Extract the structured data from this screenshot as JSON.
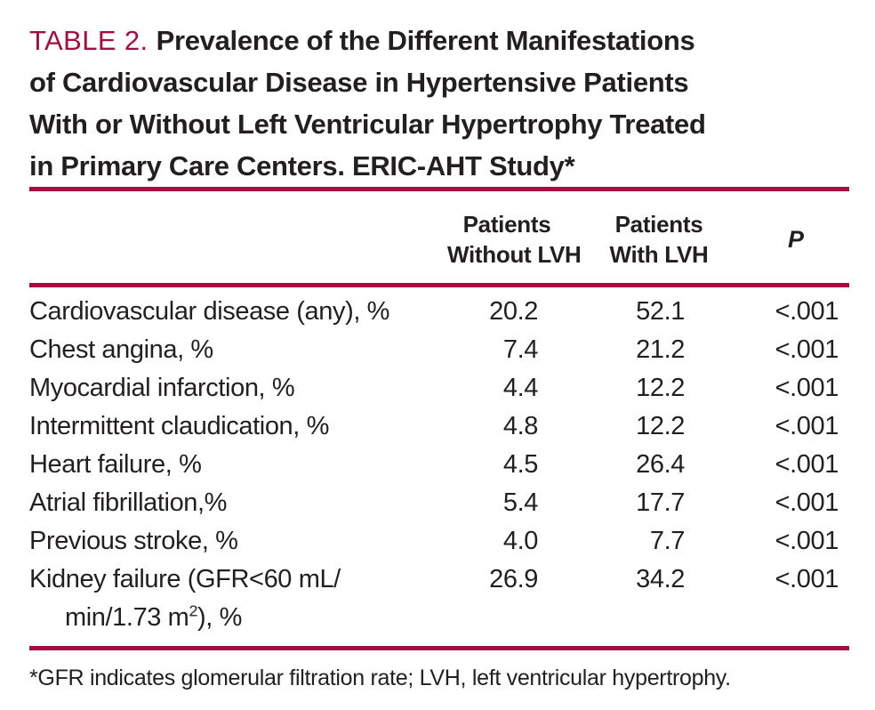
{
  "title": {
    "label": "TABLE 2.",
    "lines": [
      "Prevalence of the Different Manifestations",
      "of Cardiovascular Disease in Hypertensive Patients",
      "With or Without Left Ventricular Hypertrophy Treated",
      "in Primary Care Centers. ERIC-AHT Study*"
    ]
  },
  "table": {
    "columns": {
      "without_lvh": [
        "Patients",
        "Without LVH"
      ],
      "with_lvh": [
        "Patients",
        "With LVH"
      ],
      "p": "P"
    },
    "rows": [
      {
        "label": "Cardiovascular disease (any), %",
        "without_lvh": "20.2",
        "with_lvh": "52.1",
        "p": "<.001"
      },
      {
        "label": "Chest angina, %",
        "without_lvh": "7.4",
        "with_lvh": "21.2",
        "p": "<.001"
      },
      {
        "label": "Myocardial infarction, %",
        "without_lvh": "4.4",
        "with_lvh": "12.2",
        "p": "<.001"
      },
      {
        "label": "Intermittent claudication, %",
        "without_lvh": "4.8",
        "with_lvh": "12.2",
        "p": "<.001"
      },
      {
        "label": "Heart failure, %",
        "without_lvh": "4.5",
        "with_lvh": "26.4",
        "p": "<.001"
      },
      {
        "label": "Atrial fibrillation,%",
        "without_lvh": "5.4",
        "with_lvh": "17.7",
        "p": "<.001"
      },
      {
        "label": "Previous stroke, %",
        "without_lvh": "4.0",
        "with_lvh": "7.7",
        "p": "<.001"
      },
      {
        "label": "Kidney failure (GFR<60 mL/",
        "label_line2": {
          "pre": "min/1.73 m",
          "sup": "2",
          "post": "), %"
        },
        "without_lvh": "26.9",
        "with_lvh": "34.2",
        "p": "<.001"
      }
    ]
  },
  "footnote": "*GFR indicates glomerular filtration rate; LVH, left ventricular hypertrophy.",
  "colors": {
    "accent": "#A50D3F",
    "text": "#231F20"
  }
}
